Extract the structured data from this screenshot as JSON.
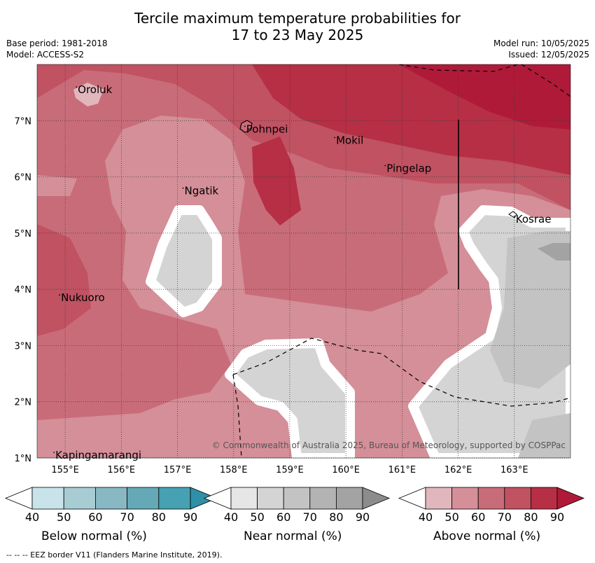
{
  "title_line1": "Tercile maximum temperature probabilities for",
  "title_line2": "17 to 23 May 2025",
  "base_period": "Base period: 1981-2018",
  "model": "Model: ACCESS-S2",
  "model_run": "Model run: 10/05/2025",
  "issued": "Issued: 12/05/2025",
  "map": {
    "lon_range": [
      154.5,
      164
    ],
    "lat_range": [
      1,
      8
    ],
    "x_ticks": [
      {
        "value": 155,
        "label": "155°E"
      },
      {
        "value": 156,
        "label": "156°E"
      },
      {
        "value": 157,
        "label": "157°E"
      },
      {
        "value": 158,
        "label": "158°E"
      },
      {
        "value": 159,
        "label": "159°E"
      },
      {
        "value": 160,
        "label": "160°E"
      },
      {
        "value": 161,
        "label": "161°E"
      },
      {
        "value": 162,
        "label": "162°E"
      },
      {
        "value": 163,
        "label": "163°E"
      }
    ],
    "y_ticks": [
      {
        "value": 7,
        "label": "7°N"
      },
      {
        "value": 6,
        "label": "6°N"
      },
      {
        "value": 5,
        "label": "5°N"
      },
      {
        "value": 4,
        "label": "4°N"
      },
      {
        "value": 3,
        "label": "3°N"
      },
      {
        "value": 2,
        "label": "2°N"
      },
      {
        "value": 1,
        "label": "1°N"
      }
    ],
    "places": [
      {
        "name": "Oroluk",
        "lon": 155.2,
        "lat": 7.6
      },
      {
        "name": "Pohnpei",
        "lon": 158.2,
        "lat": 6.9
      },
      {
        "name": "Mokil",
        "lon": 159.8,
        "lat": 6.7
      },
      {
        "name": "Pingelap",
        "lon": 160.7,
        "lat": 6.2
      },
      {
        "name": "Ngatik",
        "lon": 157.1,
        "lat": 5.8
      },
      {
        "name": "Kosrae",
        "lon": 163.0,
        "lat": 5.3
      },
      {
        "name": "Nukuoro",
        "lon": 154.9,
        "lat": 3.9
      },
      {
        "name": "Kapingamarangi",
        "lon": 154.8,
        "lat": 1.1
      }
    ],
    "copyright": "© Commonwealth of Australia 2025, Bureau of Meteorology, supported by COSPPac"
  },
  "colorbars": [
    {
      "title": "Below normal (%)",
      "labels": [
        "40",
        "50",
        "60",
        "70",
        "80",
        "90"
      ],
      "colors": [
        "#ffffff",
        "#c8e3ea",
        "#a8ccd3",
        "#88b8c2",
        "#65a9b6",
        "#46a1b2",
        "#2f8fa6"
      ]
    },
    {
      "title": "Near normal (%)",
      "labels": [
        "40",
        "50",
        "60",
        "70",
        "80",
        "90"
      ],
      "colors": [
        "#ffffff",
        "#e6e6e6",
        "#d4d4d4",
        "#c3c3c3",
        "#b3b3b3",
        "#a3a3a3",
        "#8c8c8c"
      ]
    },
    {
      "title": "Above normal (%)",
      "labels": [
        "40",
        "50",
        "60",
        "70",
        "80",
        "90"
      ],
      "colors": [
        "#ffffff",
        "#e2b6bd",
        "#d48f98",
        "#c96c79",
        "#c05262",
        "#b62f45",
        "#b01a39"
      ]
    }
  ],
  "footer": "--  --  -- EEZ border V11 (Flanders Marine Institute, 2019)."
}
